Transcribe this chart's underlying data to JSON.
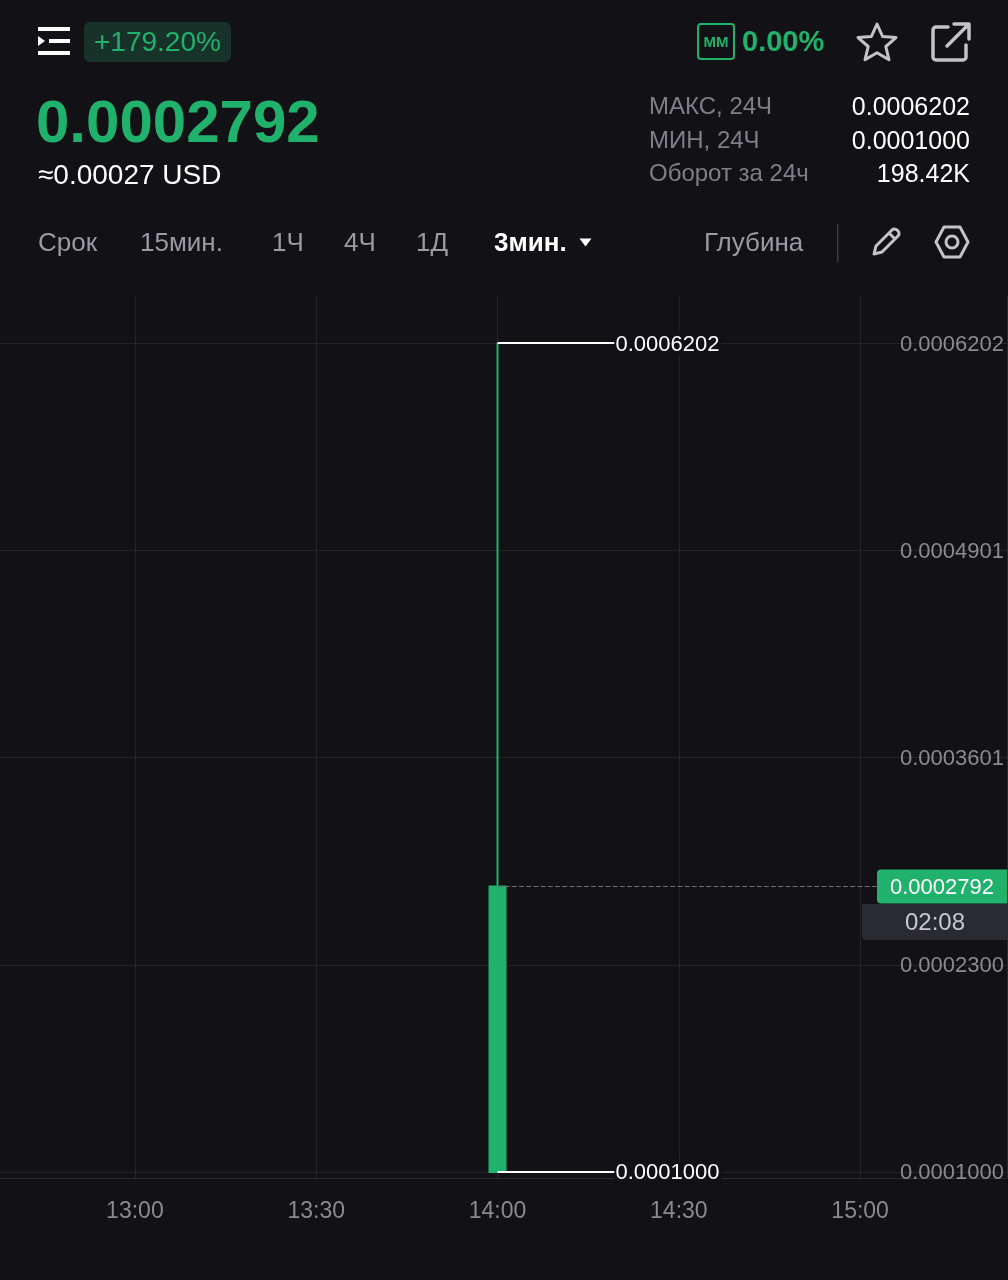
{
  "chart_data": {
    "type": "candlestick",
    "x": [
      14
    ],
    "ohlc": [
      [
        0.0001,
        0.0006202,
        0.0001,
        0.0002792
      ]
    ],
    "color": "#20b26c",
    "xlim": [
      12.628,
      15.405
    ],
    "xticks": [
      {
        "value": 13,
        "label": "13:00"
      },
      {
        "value": 13.5,
        "label": "13:30"
      },
      {
        "value": 14,
        "label": "14:00"
      },
      {
        "value": 14.5,
        "label": "14:30"
      },
      {
        "value": 15,
        "label": "15:00"
      }
    ],
    "ylim": [
      9.62e-05,
      0.0006497
    ],
    "yticks": [
      {
        "value": 0.0001,
        "label": "0.0001000"
      },
      {
        "value": 0.00023,
        "label": "0.0002300"
      },
      0.0003601,
      0.0004901,
      0.0006202
    ],
    "grid": true,
    "ref_lines": [
      {
        "axis": "y",
        "value": 0.0002792,
        "label": "0.0002792",
        "color": "#6e6e74",
        "line_style": "dashed"
      }
    ],
    "annotations": [
      "+179.20%",
      "MM",
      "0.00%",
      "0.0002792",
      "≈0.00027 USD",
      "МАКС, 24Ч",
      "0.0006202",
      "МИН, 24Ч",
      "0.0001000",
      "Оборот за 24ч",
      "198.42K",
      "Срок",
      "15мин.",
      "1Ч",
      "4Ч",
      "1Д",
      "3мин.",
      "Глубина",
      "02:08",
      {
        "text": "0.0006202",
        "x": 14,
        "y": 0.0006202
      },
      {
        "text": "0.0001000",
        "x": 14,
        "y": 0.0001
      }
    ]
  }
}
